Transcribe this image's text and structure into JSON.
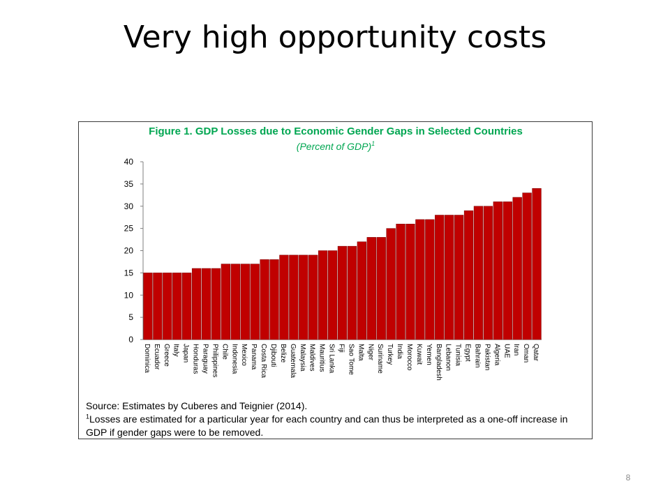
{
  "slide": {
    "title": "Very high opportunity costs",
    "page_number": "8"
  },
  "figure": {
    "title": "Figure 1. GDP Losses due to Economic Gender Gaps in Selected Countries",
    "subtitle": "(Percent of GDP)",
    "subtitle_footnote_mark": "1",
    "source": "Source: Estimates by Cuberes and Teignier (2014).",
    "footnote_mark": "1",
    "footnote": "Losses are estimated for a particular year for each country and can thus be interpreted as a one-off increase in GDP if gender gaps were to be removed."
  },
  "colors": {
    "bar": "#c00000",
    "bar_edge": "#7a0000",
    "title_green": "#00a651",
    "axis": "#7f7f7f"
  },
  "chart_data": {
    "type": "bar",
    "title": "Figure 1. GDP Losses due to Economic Gender Gaps in Selected Countries",
    "ylabel": "(Percent of GDP)",
    "xlabel": "",
    "ylim": [
      0,
      40
    ],
    "yticks": [
      0,
      5,
      10,
      15,
      20,
      25,
      30,
      35,
      40
    ],
    "grid": false,
    "legend": "none",
    "categories": [
      "Dominica",
      "Ecuador",
      "Greece",
      "Italy",
      "Japan",
      "Honduras",
      "Paraguay",
      "Philippines",
      "Chile",
      "Indonesia",
      "Mexico",
      "Panama",
      "Costa Rica",
      "Djibouti",
      "Belize",
      "Guatemala",
      "Malaysia",
      "Maldives",
      "Mauritius",
      "Sri Lanka",
      "Fiji",
      "Sao Tome",
      "Malta",
      "Niger",
      "Suriname",
      "Turkey",
      "India",
      "Morocco",
      "Kuwait",
      "Yemen",
      "Bangladesh",
      "Lebanon",
      "Tunisia",
      "Egypt",
      "Bahrain",
      "Pakistan",
      "Algeria",
      "UAE",
      "Iran",
      "Oman",
      "Qatar"
    ],
    "values": [
      15,
      15,
      15,
      15,
      15,
      16,
      16,
      16,
      17,
      17,
      17,
      17,
      18,
      18,
      19,
      19,
      19,
      19,
      20,
      20,
      21,
      21,
      22,
      23,
      23,
      25,
      26,
      26,
      27,
      27,
      28,
      28,
      28,
      29,
      30,
      30,
      31,
      31,
      32,
      33,
      34
    ]
  }
}
